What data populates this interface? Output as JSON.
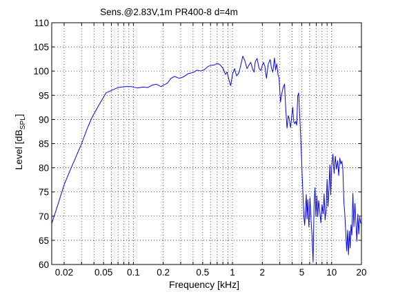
{
  "chart_data": {
    "type": "line",
    "title": "Sens.@2.83V,1m PR400-8 d=4m",
    "xlabel": "Frequency [kHz]",
    "ylabel": {
      "main": "Level [dB",
      "sub": "SPL",
      "close": "]"
    },
    "xscale": "log",
    "xlim": [
      0.015,
      20
    ],
    "ylim": [
      60,
      110
    ],
    "grid": true,
    "line_color": "#0000ff",
    "x_ticks": [
      {
        "value": 0.02,
        "label": "0.02"
      },
      {
        "value": 0.05,
        "label": "0.05"
      },
      {
        "value": 0.1,
        "label": "0.1"
      },
      {
        "value": 0.2,
        "label": "0.2"
      },
      {
        "value": 0.5,
        "label": "0.5"
      },
      {
        "value": 1,
        "label": "1"
      },
      {
        "value": 2,
        "label": "2"
      },
      {
        "value": 5,
        "label": "5"
      },
      {
        "value": 10,
        "label": "10"
      },
      {
        "value": 20,
        "label": "20"
      }
    ],
    "x_minor_grid": [
      0.02,
      0.03,
      0.04,
      0.05,
      0.06,
      0.07,
      0.08,
      0.09,
      0.1,
      0.2,
      0.3,
      0.4,
      0.5,
      0.6,
      0.7,
      0.8,
      0.9,
      1,
      2,
      3,
      4,
      5,
      6,
      7,
      8,
      9,
      10,
      20
    ],
    "y_ticks": [
      60,
      65,
      70,
      75,
      80,
      85,
      90,
      95,
      100,
      105,
      110
    ],
    "series": [
      {
        "x": [
          0.015,
          0.016,
          0.018,
          0.02,
          0.023,
          0.026,
          0.03,
          0.034,
          0.038,
          0.043,
          0.048,
          0.053,
          0.06,
          0.068,
          0.075,
          0.085,
          0.095,
          0.11,
          0.125,
          0.14,
          0.155,
          0.17,
          0.19,
          0.205,
          0.22,
          0.24,
          0.26,
          0.29,
          0.32,
          0.36,
          0.4,
          0.44,
          0.48,
          0.52,
          0.57,
          0.62,
          0.66,
          0.7,
          0.75,
          0.8,
          0.85,
          0.88,
          0.92,
          0.96,
          1.0,
          1.05,
          1.1,
          1.15,
          1.2,
          1.27,
          1.33,
          1.4,
          1.47,
          1.53,
          1.6,
          1.65,
          1.7,
          1.77,
          1.85,
          1.93,
          2.0,
          2.05,
          2.12,
          2.2,
          2.3,
          2.4,
          2.48,
          2.55,
          2.65,
          2.72,
          2.8,
          2.88,
          2.95,
          3.05,
          3.15,
          3.25,
          3.35,
          3.45,
          3.55,
          3.65,
          3.75,
          3.85,
          3.95,
          4.05,
          4.15,
          4.25,
          4.35,
          4.45,
          4.55,
          4.65,
          4.75,
          4.85,
          4.95,
          5.05,
          5.15,
          5.25,
          5.35,
          5.45,
          5.55,
          5.65,
          5.75,
          5.9,
          6.05,
          6.2,
          6.35,
          6.5,
          6.65,
          6.8,
          6.95,
          7.1,
          7.25,
          7.4,
          7.6,
          7.8,
          8.0,
          8.2,
          8.4,
          8.6,
          8.8,
          9.0,
          9.2,
          9.4,
          9.6,
          9.8,
          10.0,
          10.3,
          10.6,
          10.9,
          11.2,
          11.5,
          11.8,
          12.1,
          12.4,
          12.7,
          13.0,
          13.3,
          13.6,
          13.9,
          14.2,
          14.5,
          14.8,
          15.1,
          15.4,
          15.7,
          16.0,
          16.4,
          16.8,
          17.2,
          17.6,
          18.0,
          18.4,
          18.8,
          19.2,
          19.6,
          20.0
        ],
        "y": [
          68.5,
          70.2,
          73.5,
          76.5,
          79.5,
          82.0,
          85.0,
          88.0,
          90.3,
          92.3,
          94.0,
          95.5,
          96.0,
          96.5,
          96.7,
          96.8,
          96.8,
          96.5,
          96.7,
          96.6,
          97.1,
          97.3,
          96.8,
          97.2,
          97.5,
          98.5,
          98.9,
          98.5,
          98.8,
          99.5,
          99.7,
          100.2,
          100.0,
          100.3,
          101.0,
          101.2,
          101.3,
          101.6,
          101.3,
          100.6,
          99.3,
          99.8,
          98.2,
          97.0,
          99.4,
          100.5,
          99.0,
          99.5,
          100.8,
          103.1,
          102.2,
          100.5,
          101.3,
          101.8,
          100.3,
          99.8,
          102.0,
          102.6,
          100.6,
          100.1,
          101.2,
          101.8,
          101.0,
          98.5,
          101.5,
          102.4,
          100.5,
          99.8,
          102.7,
          100.2,
          101.5,
          99.2,
          98.6,
          93.6,
          95.5,
          96.7,
          97.3,
          92.0,
          88.2,
          90.8,
          90.0,
          88.3,
          90.5,
          92.5,
          89.5,
          89.1,
          89.6,
          88.8,
          94.8,
          95.5,
          91.5,
          87.5,
          83.0,
          78.4,
          74.3,
          70.0,
          68.1,
          71.5,
          74.5,
          69.4,
          73.4,
          67.8,
          73.8,
          69.3,
          65.9,
          60.5,
          72.0,
          75.9,
          69.9,
          74.2,
          69.9,
          73.2,
          71.0,
          68.6,
          72.4,
          70.5,
          74.6,
          69.2,
          71.3,
          77.6,
          72.0,
          75.5,
          80.6,
          74.4,
          79.8,
          82.8,
          78.8,
          82.4,
          79.7,
          81.5,
          78.4,
          82.0,
          80.8,
          81.4,
          79.6,
          73.0,
          70.4,
          66.5,
          62.8,
          67.1,
          62.0,
          66.9,
          63.4,
          68.2,
          66.1,
          74.7,
          67.8,
          72.6,
          68.6,
          64.8,
          70.4,
          66.3,
          69.8,
          68.7,
          68.4
        ]
      }
    ]
  }
}
